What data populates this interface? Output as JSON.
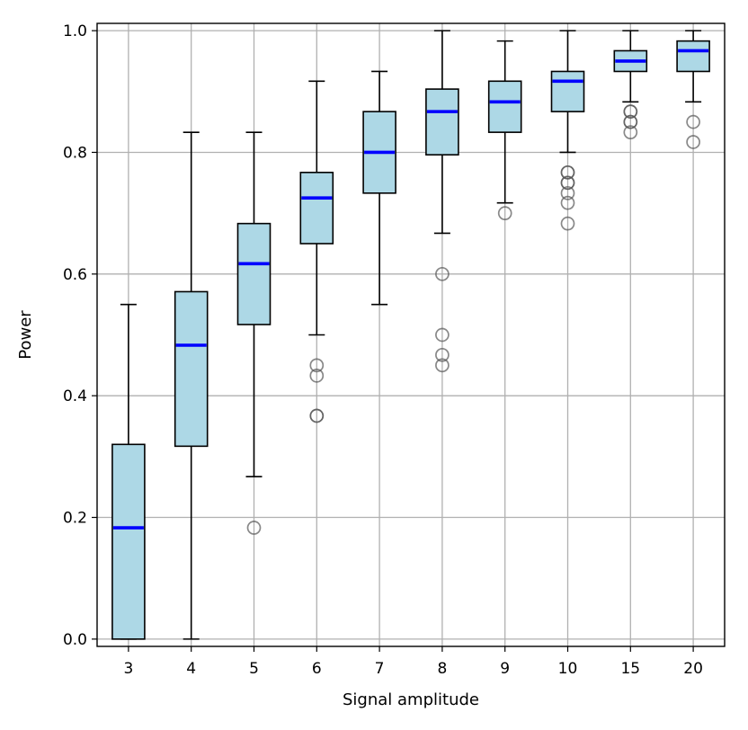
{
  "chart_data": {
    "type": "box",
    "title": "",
    "xlabel": "Signal amplitude",
    "ylabel": "Power",
    "ylim": [
      -0.012,
      1.012
    ],
    "yticks": [
      0.0,
      0.2,
      0.4,
      0.6,
      0.8,
      1.0
    ],
    "ytick_labels": [
      "0.0",
      "0.2",
      "0.4",
      "0.6",
      "0.8",
      "1.0"
    ],
    "grid": true,
    "colors": {
      "box_fill": "#add8e6",
      "median": "#0000ff",
      "whisker": "#000000",
      "outlier": "#555555",
      "grid": "#b0b0b0"
    },
    "categories": [
      "3",
      "4",
      "5",
      "6",
      "7",
      "8",
      "9",
      "10",
      "15",
      "20"
    ],
    "boxes": [
      {
        "category": "3",
        "whisker_low": 0.0,
        "q1": 0.0,
        "median": 0.183,
        "q3": 0.32,
        "whisker_high": 0.55,
        "outliers": []
      },
      {
        "category": "4",
        "whisker_low": 0.0,
        "q1": 0.317,
        "median": 0.483,
        "q3": 0.571,
        "whisker_high": 0.833,
        "outliers": []
      },
      {
        "category": "5",
        "whisker_low": 0.267,
        "q1": 0.517,
        "median": 0.617,
        "q3": 0.683,
        "whisker_high": 0.833,
        "outliers": [
          0.183
        ]
      },
      {
        "category": "6",
        "whisker_low": 0.5,
        "q1": 0.65,
        "median": 0.725,
        "q3": 0.767,
        "whisker_high": 0.917,
        "outliers": [
          0.45,
          0.433,
          0.367,
          0.367
        ]
      },
      {
        "category": "7",
        "whisker_low": 0.55,
        "q1": 0.733,
        "median": 0.8,
        "q3": 0.867,
        "whisker_high": 0.933,
        "outliers": []
      },
      {
        "category": "8",
        "whisker_low": 0.667,
        "q1": 0.796,
        "median": 0.867,
        "q3": 0.904,
        "whisker_high": 1.0,
        "outliers": [
          0.6,
          0.5,
          0.467,
          0.45
        ]
      },
      {
        "category": "9",
        "whisker_low": 0.717,
        "q1": 0.833,
        "median": 0.883,
        "q3": 0.917,
        "whisker_high": 0.983,
        "outliers": [
          0.7
        ]
      },
      {
        "category": "10",
        "whisker_low": 0.8,
        "q1": 0.867,
        "median": 0.917,
        "q3": 0.933,
        "whisker_high": 1.0,
        "outliers": [
          0.767,
          0.767,
          0.75,
          0.75,
          0.733,
          0.717,
          0.683
        ]
      },
      {
        "category": "15",
        "whisker_low": 0.883,
        "q1": 0.933,
        "median": 0.95,
        "q3": 0.967,
        "whisker_high": 1.0,
        "outliers": [
          0.867,
          0.867,
          0.85,
          0.85,
          0.833
        ]
      },
      {
        "category": "20",
        "whisker_low": 0.883,
        "q1": 0.933,
        "median": 0.967,
        "q3": 0.983,
        "whisker_high": 1.0,
        "outliers": [
          0.85,
          0.817
        ]
      }
    ]
  }
}
